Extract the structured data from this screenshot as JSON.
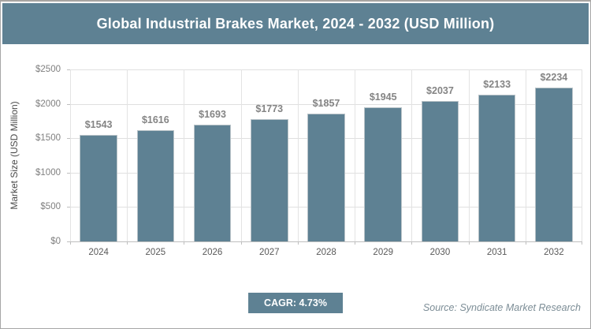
{
  "colors": {
    "accent": "#5e8193",
    "bar": "#5e8193",
    "gridline": "#e0e0e0",
    "axis_line": "#bfbfbf",
    "data_label": "#848484",
    "tick_label": "#7f7f7f",
    "title_text": "#ffffff",
    "source_text": "#7c8d96",
    "frame_border": "#a6a6a6"
  },
  "chart_data": {
    "type": "bar",
    "title": "Global Industrial Brakes Market, 2024 - 2032 (USD Million)",
    "categories": [
      "2024",
      "2025",
      "2026",
      "2027",
      "2028",
      "2029",
      "2030",
      "2031",
      "2032"
    ],
    "values": [
      1543,
      1616,
      1693,
      1773,
      1857,
      1945,
      2037,
      2133,
      2234
    ],
    "value_prefix": "$",
    "xlabel": "",
    "ylabel": "Market Size (USD Million)",
    "ylim": [
      0,
      2500
    ],
    "yticks": [
      0,
      500,
      1000,
      1500,
      2000,
      2500
    ],
    "ytick_labels": [
      "$0",
      "$500",
      "$1000",
      "$1500",
      "$2000",
      "$2500"
    ],
    "grid": "both",
    "legend": "none",
    "data_labels": "above-bars"
  },
  "footer": {
    "cagr_label": "CAGR: 4.73%",
    "source": "Source: Syndicate Market Research"
  }
}
